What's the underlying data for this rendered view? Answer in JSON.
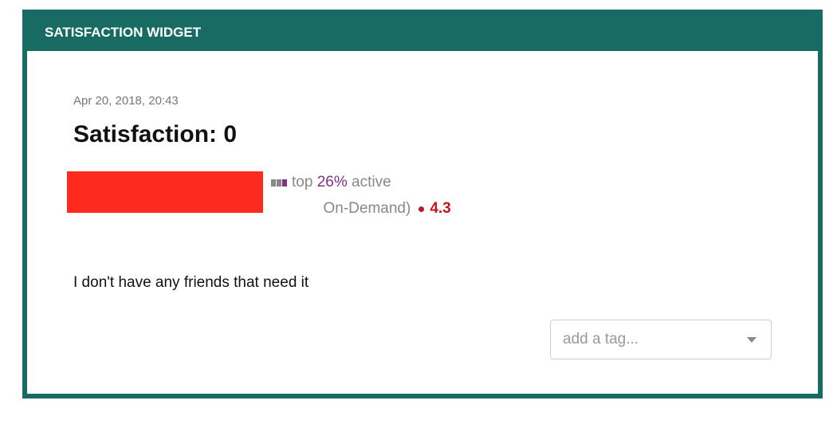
{
  "widget": {
    "title": "SATISFACTION WIDGET"
  },
  "response": {
    "date": "Apr 20, 2018, 20:43",
    "title": "Satisfaction: 0",
    "activity": {
      "prefix": "top",
      "percent": "26%",
      "suffix": "active"
    },
    "plan_fragment": "On-Demand)",
    "rating": "4.3",
    "comment": "I don't have any friends that need it"
  },
  "tag_select": {
    "placeholder": "add a tag..."
  },
  "colors": {
    "header": "#176b63",
    "accent_purple": "#843282",
    "rating_red": "#c4161c",
    "redaction": "#fd2a1f"
  }
}
